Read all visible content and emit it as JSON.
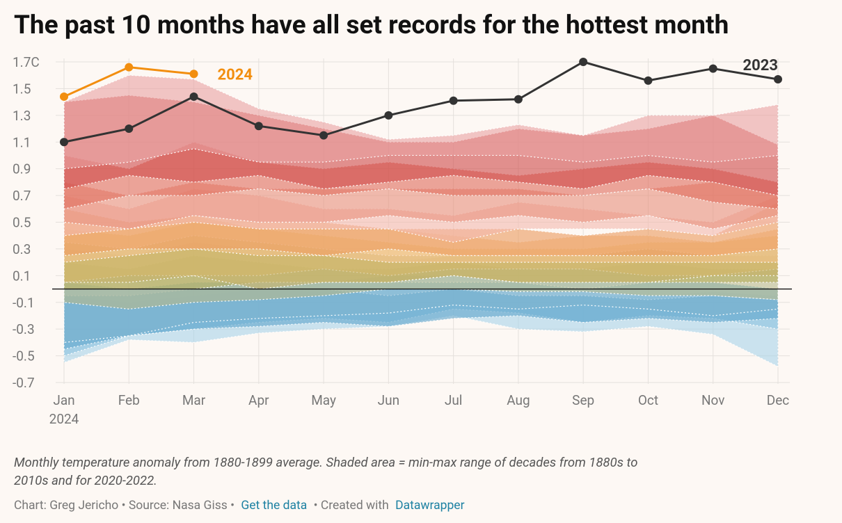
{
  "chart_data": {
    "type": "line",
    "title": "The past 10 months have all set records for the hottest month",
    "categories": [
      "Jan",
      "Feb",
      "Mar",
      "Apr",
      "May",
      "Jun",
      "Jul",
      "Aug",
      "Sep",
      "Oct",
      "Nov",
      "Dec"
    ],
    "x_sublabel": "2024",
    "ylim": [
      -0.7,
      1.7
    ],
    "yticks": [
      {
        "value": 1.7,
        "label": "1.7C"
      },
      1.5,
      1.3,
      1.1,
      0.9,
      0.7,
      0.5,
      0.3,
      0.1,
      -0.1,
      -0.3,
      -0.5,
      -0.7
    ],
    "grid": true,
    "zero_line": true,
    "series": [
      {
        "name": "2023",
        "color": "#333333",
        "values": [
          1.1,
          1.2,
          1.44,
          1.22,
          1.15,
          1.3,
          1.41,
          1.42,
          1.7,
          1.56,
          1.65,
          1.57
        ]
      },
      {
        "name": "2024",
        "color": "#f28e0f",
        "values": [
          1.44,
          1.66,
          1.61,
          null,
          null,
          null,
          null,
          null,
          null,
          null,
          null,
          null
        ]
      }
    ],
    "bands": [
      {
        "color": "#a9d4ea",
        "low": [
          -0.55,
          -0.38,
          -0.4,
          -0.33,
          -0.3,
          -0.28,
          -0.2,
          -0.3,
          -0.32,
          -0.28,
          -0.34,
          -0.58
        ],
        "high": [
          -0.05,
          -0.1,
          -0.05,
          0.0,
          -0.02,
          0.0,
          0.0,
          -0.05,
          -0.05,
          -0.05,
          -0.02,
          -0.05
        ]
      },
      {
        "color": "#8cc3e0",
        "low": [
          -0.5,
          -0.35,
          -0.3,
          -0.25,
          -0.22,
          -0.25,
          -0.15,
          -0.18,
          -0.25,
          -0.2,
          -0.22,
          -0.3
        ],
        "high": [
          0.0,
          0.0,
          0.05,
          0.05,
          0.05,
          0.1,
          0.1,
          0.05,
          0.05,
          0.05,
          0.05,
          0.0
        ]
      },
      {
        "color": "#5fa5cc",
        "low": [
          -0.45,
          -0.35,
          -0.3,
          -0.28,
          -0.25,
          -0.28,
          -0.22,
          -0.2,
          -0.25,
          -0.22,
          -0.25,
          -0.22
        ],
        "high": [
          -0.05,
          -0.05,
          0.0,
          0.0,
          0.0,
          -0.05,
          0.0,
          -0.05,
          -0.05,
          -0.08,
          -0.05,
          -0.08
        ]
      },
      {
        "color": "#7fb4cf",
        "low": [
          -0.4,
          -0.35,
          -0.25,
          -0.22,
          -0.2,
          -0.18,
          -0.12,
          -0.15,
          -0.12,
          -0.15,
          -0.2,
          -0.15
        ],
        "high": [
          0.05,
          0.0,
          0.05,
          0.05,
          0.05,
          0.05,
          0.05,
          0.05,
          0.0,
          0.05,
          0.05,
          0.0
        ]
      },
      {
        "color": "#b8b98a",
        "low": [
          -0.1,
          -0.15,
          -0.1,
          -0.08,
          -0.05,
          0.0,
          0.0,
          -0.02,
          -0.02,
          -0.05,
          -0.05,
          -0.08
        ],
        "high": [
          0.2,
          0.15,
          0.25,
          0.2,
          0.15,
          0.15,
          0.2,
          0.15,
          0.15,
          0.2,
          0.15,
          0.15
        ]
      },
      {
        "color": "#b5ad5c",
        "low": [
          0.0,
          0.0,
          0.0,
          0.05,
          0.05,
          0.05,
          0.1,
          0.05,
          0.05,
          0.05,
          0.05,
          0.05
        ],
        "high": [
          0.3,
          0.25,
          0.35,
          0.3,
          0.25,
          0.2,
          0.25,
          0.25,
          0.25,
          0.3,
          0.25,
          0.25
        ]
      },
      {
        "color": "#e7c06a",
        "low": [
          0.05,
          0.1,
          0.1,
          0.1,
          0.15,
          0.1,
          0.15,
          0.15,
          0.15,
          0.1,
          0.1,
          0.15
        ],
        "high": [
          0.45,
          0.4,
          0.5,
          0.45,
          0.4,
          0.35,
          0.3,
          0.3,
          0.3,
          0.35,
          0.35,
          0.4
        ]
      },
      {
        "color": "#c8b36a",
        "low": [
          0.05,
          0.05,
          0.1,
          0.0,
          0.05,
          0.05,
          0.1,
          0.05,
          0.05,
          0.05,
          0.1,
          0.1
        ],
        "high": [
          0.35,
          0.3,
          0.4,
          0.35,
          0.3,
          0.25,
          0.25,
          0.25,
          0.25,
          0.3,
          0.25,
          0.3
        ]
      },
      {
        "color": "#f4c38d",
        "low": [
          0.2,
          0.25,
          0.3,
          0.25,
          0.25,
          0.2,
          0.2,
          0.2,
          0.2,
          0.2,
          0.2,
          0.2
        ],
        "high": [
          0.5,
          0.45,
          0.55,
          0.45,
          0.45,
          0.45,
          0.4,
          0.35,
          0.4,
          0.4,
          0.35,
          0.45
        ]
      },
      {
        "color": "#eb9a5c",
        "low": [
          0.25,
          0.3,
          0.3,
          0.3,
          0.25,
          0.3,
          0.25,
          0.25,
          0.25,
          0.25,
          0.25,
          0.3
        ],
        "high": [
          0.6,
          0.5,
          0.55,
          0.5,
          0.5,
          0.45,
          0.45,
          0.45,
          0.4,
          0.45,
          0.4,
          0.65
        ]
      },
      {
        "color": "#f3b9ad",
        "low": [
          0.4,
          0.45,
          0.5,
          0.45,
          0.45,
          0.45,
          0.35,
          0.45,
          0.45,
          0.45,
          0.4,
          0.5
        ],
        "high": [
          0.7,
          0.6,
          0.75,
          0.7,
          0.6,
          0.6,
          0.55,
          0.65,
          0.6,
          0.55,
          0.5,
          0.7
        ]
      },
      {
        "color": "#e88f7c",
        "low": [
          0.5,
          0.45,
          0.55,
          0.5,
          0.5,
          0.55,
          0.5,
          0.55,
          0.5,
          0.55,
          0.45,
          0.55
        ],
        "high": [
          0.8,
          0.7,
          0.8,
          0.75,
          0.75,
          0.75,
          0.75,
          0.75,
          0.7,
          0.75,
          0.8,
          0.7
        ]
      },
      {
        "color": "#e06a5a",
        "low": [
          0.6,
          0.7,
          0.7,
          0.75,
          0.7,
          0.75,
          0.7,
          0.7,
          0.7,
          0.75,
          0.65,
          0.6
        ],
        "high": [
          1.0,
          0.9,
          1.1,
          0.95,
          0.9,
          0.95,
          0.9,
          0.85,
          0.9,
          0.95,
          0.9,
          0.8
        ]
      },
      {
        "color": "#cf4a48",
        "low": [
          0.75,
          0.85,
          0.8,
          0.85,
          0.75,
          0.8,
          0.85,
          0.8,
          0.75,
          0.85,
          0.8,
          0.7
        ],
        "high": [
          1.4,
          1.45,
          1.4,
          1.3,
          1.2,
          1.1,
          1.1,
          1.2,
          1.15,
          1.2,
          1.3,
          1.08
        ]
      },
      {
        "color": "#eaa2a2",
        "low": [
          0.9,
          0.95,
          1.05,
          0.95,
          0.95,
          1.0,
          1.0,
          1.0,
          0.95,
          1.0,
          0.95,
          1.0
        ],
        "high": [
          1.4,
          1.6,
          1.57,
          1.35,
          1.25,
          1.12,
          1.15,
          1.23,
          1.15,
          1.3,
          1.3,
          1.38
        ]
      }
    ],
    "notes": [
      "Monthly temperature anomaly from 1880-1899 average. Shaded area = min-max range of decades from 1880s to",
      "2010s and for 2020-2022."
    ],
    "footer": {
      "credit": "Chart: Greg Jericho • Source: Nasa Giss •",
      "link": "Get the data",
      "sep": "• Created with",
      "tool": "Datawrapper"
    }
  }
}
